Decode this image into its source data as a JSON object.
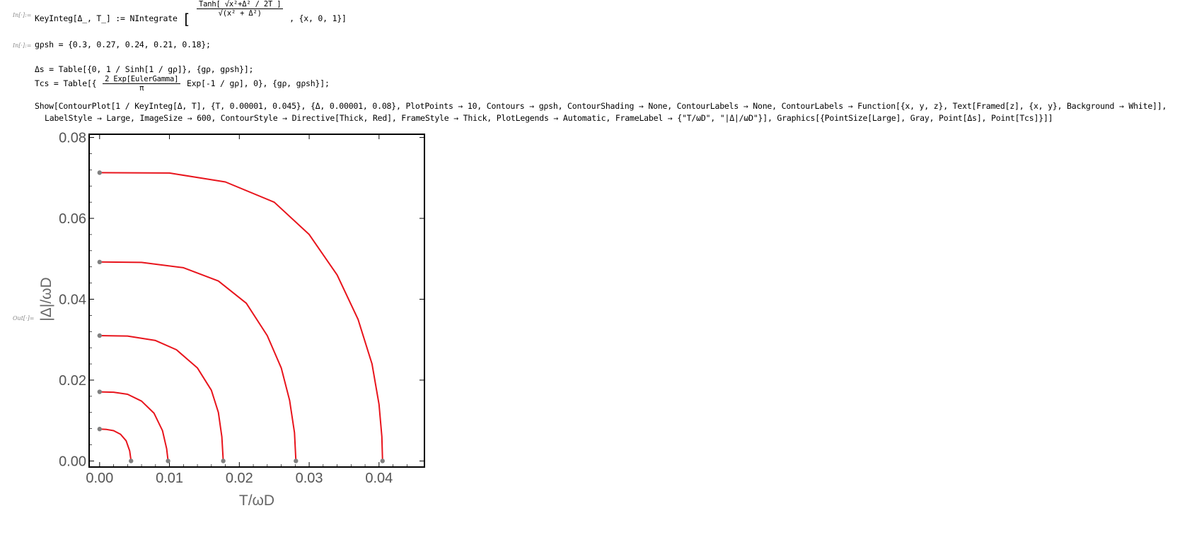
{
  "cells": {
    "in1_label": "In[·]:=",
    "in1_code_a": "KeyInteg[Δ_, T_] := NIntegrate",
    "in1_frac_num": "Tanh[ √x²+Δ² / 2T ]",
    "in1_frac_den": "√(x² + Δ²)",
    "in1_code_b": ", {x, 0, 1}]",
    "in2_label": "In[·]:=",
    "in2_code": "gρsh = {0.3, 0.27, 0.24, 0.21, 0.18};",
    "line3": "Δs = Table[{0, 1 / Sinh[1 / gρ]}, {gρ, gρsh}];",
    "line4_a": "Tcs = Table[{",
    "line4_num": "2 Exp[EulerGamma]",
    "line4_den": "π",
    "line4_b": "Exp[-1 / gρ], 0}, {gρ, gρsh}];",
    "line5": "Show[ContourPlot[1 / KeyInteg[Δ, T], {T, 0.00001, 0.045}, {Δ, 0.00001, 0.08}, PlotPoints → 10, Contours → gρsh, ContourShading → None, ContourLabels → None, ContourLabels → Function[{x, y, z}, Text[Framed[z], {x, y}, Background → White]],",
    "line6": "LabelStyle → Large, ImageSize → 600, ContourStyle → Directive[Thick, Red], FrameStyle → Thick, PlotLegends → Automatic, FrameLabel → {\"T/ωD\", \"|Δ|/ωD\"}], Graphics[{PointSize[Large], Gray, Point[Δs], Point[Tcs]}]]",
    "out_label": "Out[·]="
  },
  "chart_data": {
    "type": "line",
    "xlabel": "T/ωD",
    "ylabel": "|Δ|/ωD",
    "xlim": [
      -0.0015,
      0.0465
    ],
    "ylim": [
      -0.0015,
      0.0815
    ],
    "xticks": [
      "0.00",
      "0.01",
      "0.02",
      "0.03",
      "0.04"
    ],
    "xtick_values": [
      0,
      0.01,
      0.02,
      0.03,
      0.04
    ],
    "yticks": [
      "0.00",
      "0.02",
      "0.04",
      "0.06",
      "0.08"
    ],
    "ytick_values": [
      0,
      0.02,
      0.04,
      0.06,
      0.08
    ],
    "grid": false,
    "line_color": "#e8141c",
    "point_color": "#808080",
    "series": [
      {
        "points": [
          [
            0,
            0.0079
          ],
          [
            0.001,
            0.0078
          ],
          [
            0.002,
            0.0075
          ],
          [
            0.003,
            0.0066
          ],
          [
            0.0038,
            0.005
          ],
          [
            0.0043,
            0.0025
          ],
          [
            0.0045,
            0.0
          ]
        ]
      },
      {
        "points": [
          [
            0,
            0.0171
          ],
          [
            0.002,
            0.017
          ],
          [
            0.004,
            0.0165
          ],
          [
            0.006,
            0.0148
          ],
          [
            0.0078,
            0.0118
          ],
          [
            0.009,
            0.0075
          ],
          [
            0.0096,
            0.003
          ],
          [
            0.0098,
            0.0
          ]
        ]
      },
      {
        "points": [
          [
            0,
            0.031
          ],
          [
            0.004,
            0.0309
          ],
          [
            0.008,
            0.0298
          ],
          [
            0.011,
            0.0275
          ],
          [
            0.014,
            0.023
          ],
          [
            0.016,
            0.0175
          ],
          [
            0.017,
            0.012
          ],
          [
            0.0175,
            0.006
          ],
          [
            0.0177,
            0.0
          ]
        ]
      },
      {
        "points": [
          [
            0,
            0.0492
          ],
          [
            0.006,
            0.0491
          ],
          [
            0.012,
            0.0478
          ],
          [
            0.017,
            0.0445
          ],
          [
            0.021,
            0.039
          ],
          [
            0.024,
            0.031
          ],
          [
            0.026,
            0.023
          ],
          [
            0.0272,
            0.015
          ],
          [
            0.0279,
            0.007
          ],
          [
            0.0281,
            0.0
          ]
        ]
      },
      {
        "points": [
          [
            0,
            0.0713
          ],
          [
            0.01,
            0.0712
          ],
          [
            0.018,
            0.069
          ],
          [
            0.025,
            0.064
          ],
          [
            0.03,
            0.056
          ],
          [
            0.034,
            0.046
          ],
          [
            0.037,
            0.035
          ],
          [
            0.039,
            0.024
          ],
          [
            0.04,
            0.014
          ],
          [
            0.0404,
            0.006
          ],
          [
            0.0405,
            0.0
          ]
        ]
      }
    ],
    "points_delta": [
      [
        0,
        0.0713
      ],
      [
        0,
        0.0492
      ],
      [
        0,
        0.031
      ],
      [
        0,
        0.0171
      ],
      [
        0,
        0.0079
      ]
    ],
    "points_tc": [
      [
        0.0405,
        0
      ],
      [
        0.0281,
        0
      ],
      [
        0.0177,
        0
      ],
      [
        0.0098,
        0
      ],
      [
        0.0045,
        0
      ]
    ]
  }
}
